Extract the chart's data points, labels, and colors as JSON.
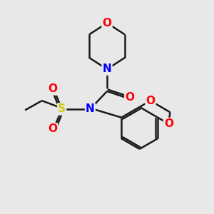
{
  "bg_color": "#e8e8e8",
  "atom_colors": {
    "C": "#000000",
    "N": "#0000ff",
    "O": "#ff0000",
    "S": "#cccc00"
  },
  "bond_color": "#1a1a1a",
  "line_width": 1.8,
  "font_size": 11
}
